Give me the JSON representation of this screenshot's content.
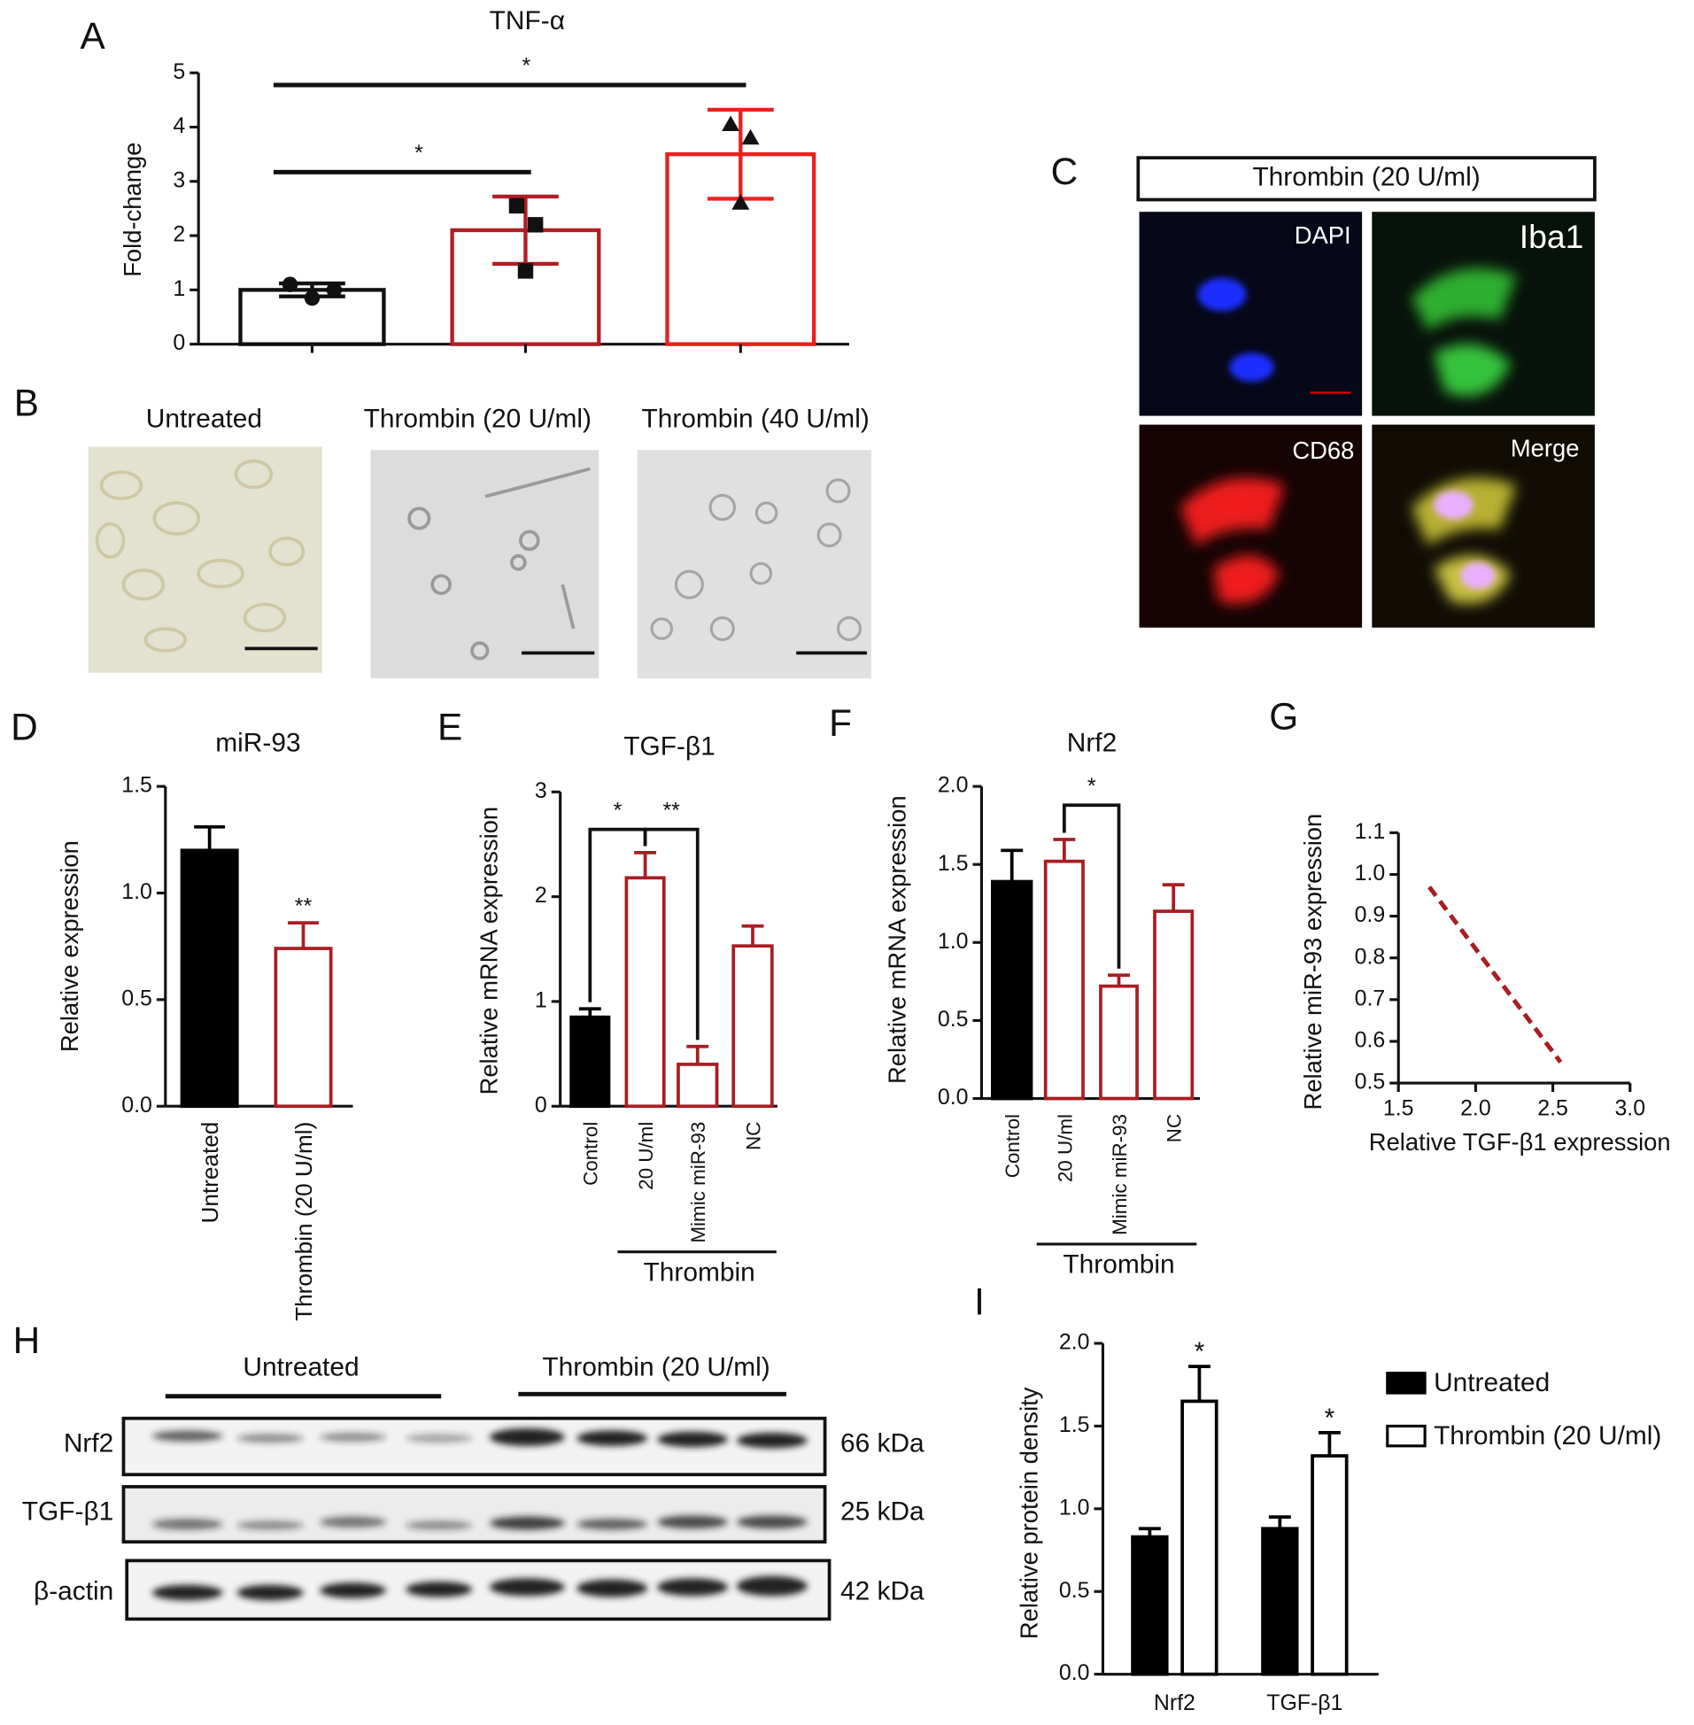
{
  "panel_labels": [
    "A",
    "B",
    "C",
    "D",
    "E",
    "F",
    "G",
    "H",
    "I"
  ],
  "panel_b": {
    "images": [
      "Untreated",
      "Thrombin (20 U/ml)",
      "Thrombin (40 U/ml)"
    ]
  },
  "panel_c": {
    "title": "Thrombin (20 U/ml)",
    "channels": [
      "DAPI",
      "Iba1",
      "CD68",
      "Merge"
    ]
  },
  "panel_h": {
    "groups": [
      "Untreated",
      "Thrombin (20 U/ml)"
    ],
    "rows": [
      "Nrf2",
      "TGF-β1",
      "β-actin"
    ],
    "sizes": [
      "66 kDa",
      "25 kDa",
      "42 kDa"
    ]
  },
  "chart_data": [
    {
      "type": "bar",
      "title": "TNF-α",
      "y_label": "Fold-change",
      "categories": [
        null,
        null,
        null
      ],
      "values": [
        1.0,
        2.1,
        3.5
      ],
      "errors": [
        0.12,
        0.62,
        0.82
      ],
      "error_bars": "both",
      "colors": [
        "#111111",
        "#b01f24",
        "#e8211d"
      ],
      "fills": [
        "#ffffff",
        "#ffffff",
        "#ffffff"
      ],
      "points": [
        [
          1.1,
          0.85,
          1.0
        ],
        [
          2.55,
          2.2,
          1.35
        ],
        [
          4.05,
          3.8,
          2.6
        ]
      ],
      "markers": [
        "circle",
        "square",
        "triangle"
      ],
      "comparisons": [
        {
          "label": "*",
          "between": [
            0,
            2
          ]
        },
        {
          "label": "*",
          "between": [
            0,
            1
          ]
        }
      ],
      "ylim": [
        0,
        5
      ],
      "yticks": [
        0,
        1,
        2,
        3,
        4,
        5
      ]
    },
    {
      "type": "bar",
      "title": "miR-93",
      "y_label": "Relative expression",
      "categories": [
        "Untreated",
        "Thrombin (20 U/ml)"
      ],
      "values": [
        1.2,
        0.74
      ],
      "errors": [
        0.11,
        0.12
      ],
      "error_bars": "upper",
      "colors": [
        "#000000",
        "#a81e22"
      ],
      "fills": [
        "#000000",
        "#ffffff"
      ],
      "significance": [
        null,
        "**"
      ],
      "ylim": [
        0,
        1.5
      ],
      "yticks": [
        {
          "value": 0,
          "label": "0.0"
        },
        0.5,
        {
          "value": 1,
          "label": "1.0"
        },
        1.5
      ]
    },
    {
      "type": "bar",
      "title": "TGF-β1",
      "y_label": "Relative mRNA expression",
      "categories": [
        "Control",
        "20 U/ml",
        "Mimic miR-93",
        "NC"
      ],
      "values": [
        0.85,
        2.18,
        0.4,
        1.53
      ],
      "errors": [
        0.08,
        0.24,
        0.17,
        0.19
      ],
      "error_bars": "upper",
      "colors": [
        "#000000",
        "#a81e22",
        "#a81e22",
        "#a81e22"
      ],
      "fills": [
        "#000000",
        "#ffffff",
        "#ffffff",
        "#ffffff"
      ],
      "comparisons": [
        {
          "label": "*",
          "between": [
            0,
            1
          ]
        },
        {
          "label": "**",
          "between": [
            1,
            2
          ]
        }
      ],
      "group": {
        "label": "Thrombin",
        "between": [
          1,
          3
        ]
      },
      "ylim": [
        0,
        3
      ],
      "yticks": [
        0,
        1,
        2,
        3
      ]
    },
    {
      "type": "bar",
      "title": "Nrf2",
      "y_label": "Relative mRNA expression",
      "categories": [
        "Control",
        "20 U/ml",
        "Mimic miR-93",
        "NC"
      ],
      "values": [
        1.39,
        1.52,
        0.72,
        1.2
      ],
      "errors": [
        0.2,
        0.14,
        0.07,
        0.17
      ],
      "error_bars": "upper",
      "colors": [
        "#000000",
        "#a81e22",
        "#a81e22",
        "#a81e22"
      ],
      "fills": [
        "#000000",
        "#ffffff",
        "#ffffff",
        "#ffffff"
      ],
      "comparisons": [
        {
          "label": "*",
          "between": [
            1,
            2
          ]
        }
      ],
      "group": {
        "label": "Thrombin",
        "between": [
          1,
          3
        ]
      },
      "ylim": [
        0,
        2
      ],
      "yticks": [
        {
          "value": 0,
          "label": "0.0"
        },
        0.5,
        {
          "value": 1,
          "label": "1.0"
        },
        1.5,
        {
          "value": 2,
          "label": "2.0"
        }
      ]
    },
    {
      "type": "line",
      "x_label": "Relative TGF-β1 expression",
      "y_label": "Relative miR-93 expression",
      "x": [
        1.7,
        2.55
      ],
      "values": [
        0.97,
        0.55
      ],
      "color": "#a81e22",
      "dashed": true,
      "xlim": [
        1.5,
        3.0
      ],
      "xticks": [
        1.5,
        {
          "value": 2,
          "label": "2.0"
        },
        2.5,
        {
          "value": 3,
          "label": "3.0"
        }
      ],
      "ylim": [
        0.5,
        1.1
      ],
      "yticks": [
        0.5,
        0.6,
        0.7,
        0.8,
        0.9,
        {
          "value": 1,
          "label": "1.0"
        },
        1.1
      ]
    },
    {
      "type": "bar",
      "y_label": "Relative protein density",
      "categories": [
        "Nrf2",
        "TGF-β1"
      ],
      "series": [
        {
          "name": "Untreated",
          "color": "#000000",
          "fill": "#000000",
          "values": [
            0.83,
            0.88
          ],
          "errors": [
            0.05,
            0.07
          ]
        },
        {
          "name": "Thrombin (20 U/ml)",
          "color": "#000000",
          "fill": "#ffffff",
          "values": [
            1.65,
            1.32
          ],
          "errors": [
            0.21,
            0.14
          ],
          "significance": [
            "*",
            "*"
          ]
        }
      ],
      "error_bars": "upper",
      "legend": "right",
      "ylim": [
        0,
        2
      ],
      "yticks": [
        {
          "value": 0,
          "label": "0.0"
        },
        0.5,
        {
          "value": 1,
          "label": "1.0"
        },
        1.5,
        {
          "value": 2,
          "label": "2.0"
        }
      ]
    }
  ]
}
